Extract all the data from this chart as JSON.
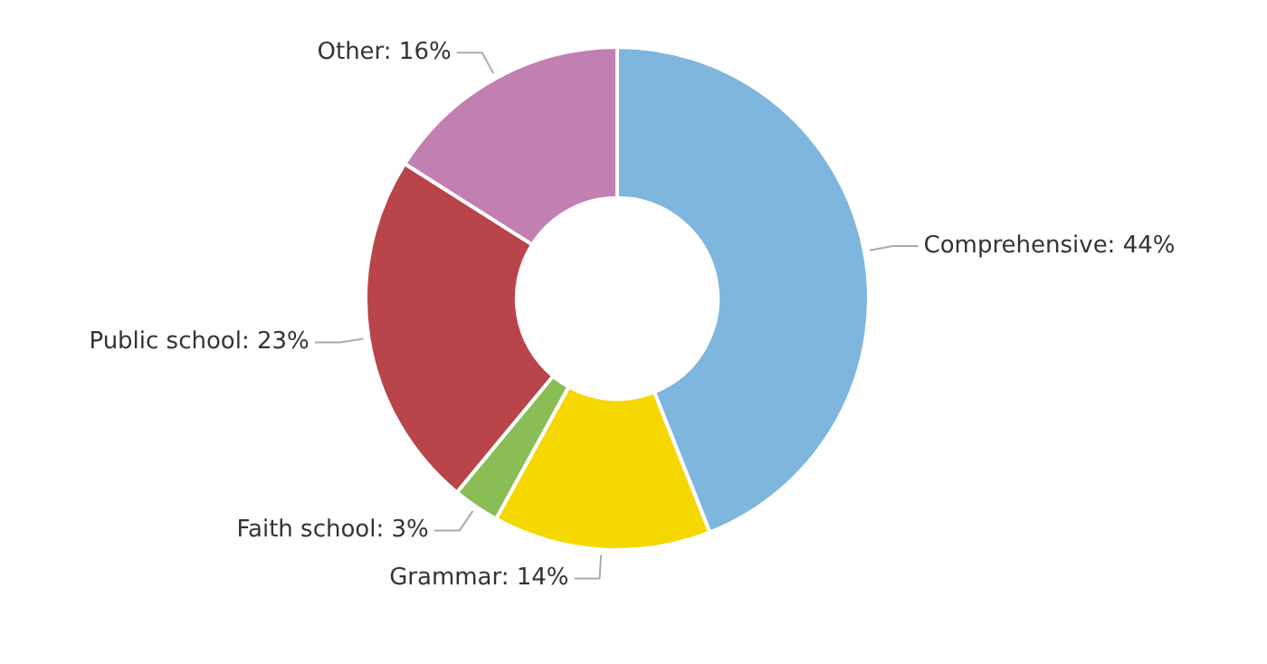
{
  "chart_data": {
    "type": "donut",
    "categories": [
      "Comprehensive",
      "Grammar",
      "Faith school",
      "Public school",
      "Other"
    ],
    "values": [
      44,
      14,
      3,
      23,
      16
    ],
    "value_labels": [
      "44%",
      "14%",
      "3%",
      "23%",
      "16%"
    ],
    "colors": [
      "#7eb6de",
      "#f5d800",
      "#8bbd57",
      "#b94449",
      "#c27fb1"
    ],
    "legend": false
  }
}
